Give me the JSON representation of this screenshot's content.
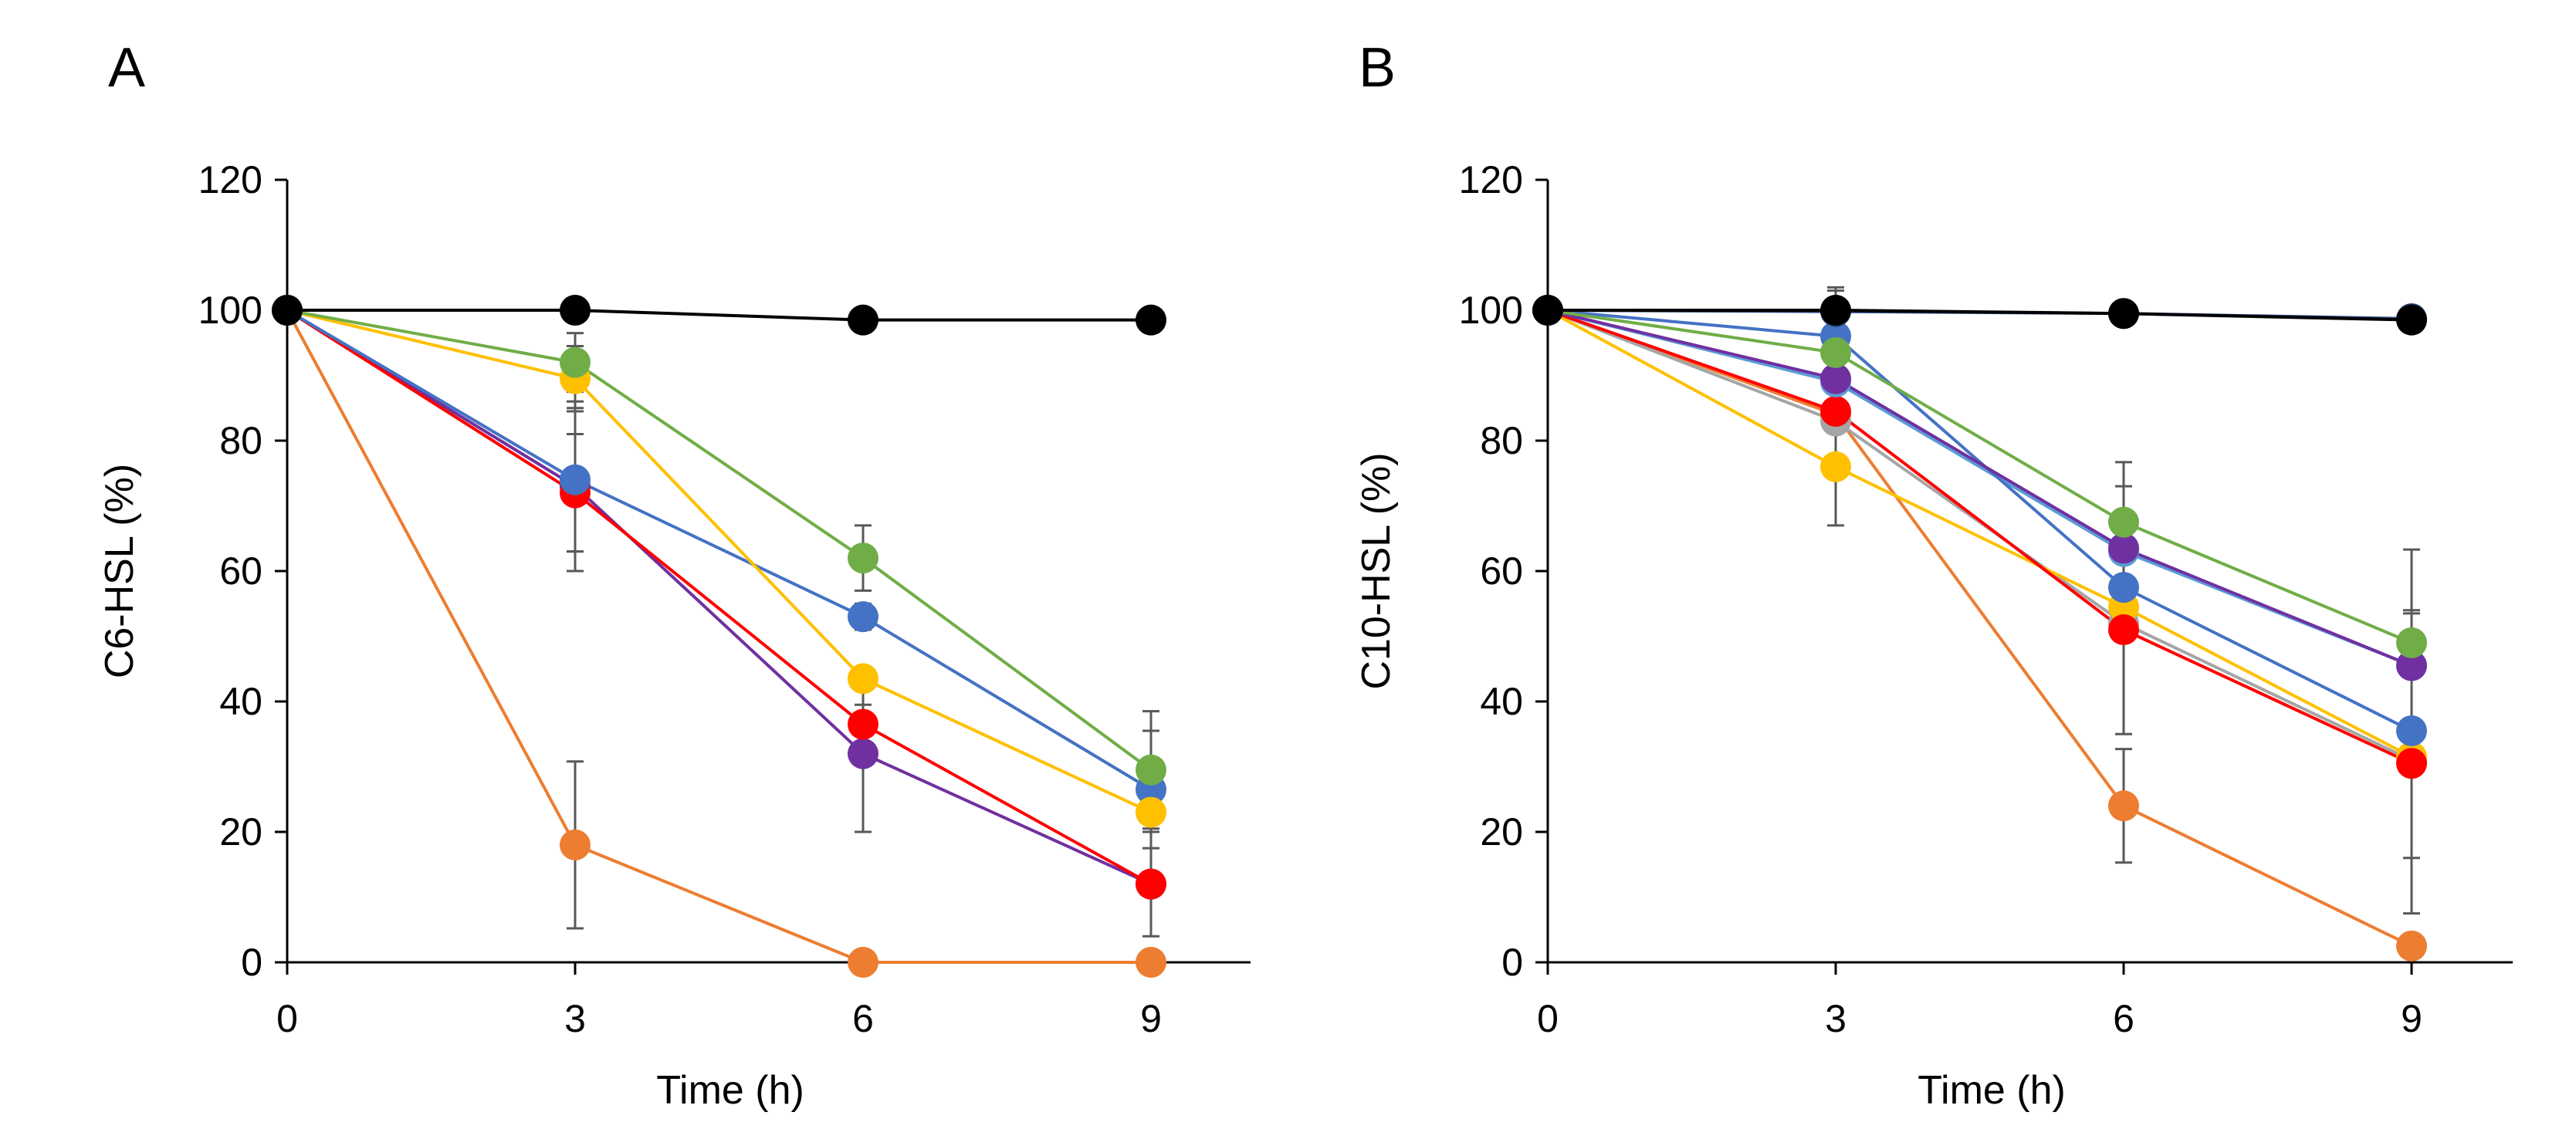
{
  "chart_data": [
    {
      "type": "line",
      "panel_label": "A",
      "xlabel": "Time (h)",
      "ylabel": "C6-HSL (%)",
      "xlim": [
        0,
        10
      ],
      "ylim": [
        0,
        120
      ],
      "x_ticks": [
        0,
        3,
        6,
        9
      ],
      "y_ticks": [
        0,
        20,
        40,
        60,
        80,
        100,
        120
      ],
      "x_tick_labels": [
        "0",
        "3",
        "6",
        "9"
      ],
      "y_tick_labels": [
        "0",
        "20",
        "40",
        "60",
        "80",
        "100",
        "120"
      ],
      "legend": "none",
      "x": [
        0,
        3,
        6,
        9
      ],
      "series": [
        {
          "name": "orange",
          "color": "#ED7D31",
          "values": [
            100,
            18,
            0,
            0
          ],
          "errors": [
            0,
            12.8,
            0,
            0
          ]
        },
        {
          "name": "purple",
          "color": "#7030A0",
          "values": [
            100,
            73,
            32,
            12
          ],
          "errors": [
            0,
            13,
            12,
            8
          ]
        },
        {
          "name": "red",
          "color": "#FF0000",
          "values": [
            100,
            72,
            36.5,
            12
          ],
          "errors": [
            0,
            9,
            3,
            0
          ]
        },
        {
          "name": "blue",
          "color": "#4472C4",
          "values": [
            100,
            74,
            53,
            26.5
          ],
          "errors": [
            0,
            11,
            2,
            9
          ]
        },
        {
          "name": "yellow",
          "color": "#FFC000",
          "values": [
            100,
            89.5,
            43.5,
            23
          ],
          "errors": [
            0,
            5,
            0,
            3
          ]
        },
        {
          "name": "green",
          "color": "#70AD47",
          "values": [
            100,
            92,
            62,
            29.5
          ],
          "errors": [
            0,
            4.5,
            5,
            9
          ]
        },
        {
          "name": "black",
          "color": "#000000",
          "values": [
            100,
            100,
            98.5,
            98.5
          ],
          "errors": [
            0,
            0,
            0,
            0
          ]
        }
      ]
    },
    {
      "type": "line",
      "panel_label": "B",
      "xlabel": "Time (h)",
      "ylabel": "C10-HSL (%)",
      "xlim": [
        0,
        10
      ],
      "ylim": [
        0,
        120
      ],
      "x_ticks": [
        0,
        3,
        6,
        9
      ],
      "y_ticks": [
        0,
        20,
        40,
        60,
        80,
        100,
        120
      ],
      "x_tick_labels": [
        "0",
        "3",
        "6",
        "9"
      ],
      "y_tick_labels": [
        "0",
        "20",
        "40",
        "60",
        "80",
        "100",
        "120"
      ],
      "legend": "none",
      "x": [
        0,
        3,
        6,
        9
      ],
      "series": [
        {
          "name": "orange",
          "color": "#ED7D31",
          "values": [
            100,
            84,
            24,
            2.5
          ],
          "errors": [
            0,
            0,
            8.7,
            0
          ]
        },
        {
          "name": "gray",
          "color": "#A5A5A5",
          "values": [
            100,
            83,
            52,
            31
          ],
          "errors": [
            0,
            0,
            17,
            15
          ]
        },
        {
          "name": "yellow",
          "color": "#FFC000",
          "values": [
            100,
            76,
            54.5,
            31.5
          ],
          "errors": [
            0,
            9,
            0,
            0
          ]
        },
        {
          "name": "red",
          "color": "#FF0000",
          "values": [
            100,
            84.5,
            51,
            30.5
          ],
          "errors": [
            0,
            0,
            0,
            23
          ]
        },
        {
          "name": "light-blue",
          "color": "#5B9BD5",
          "values": [
            100,
            89,
            63,
            45.5
          ],
          "errors": [
            0,
            0,
            10,
            8.5
          ]
        },
        {
          "name": "blue",
          "color": "#4472C4",
          "values": [
            100,
            96,
            57.5,
            35.5
          ],
          "errors": [
            0,
            7,
            0,
            0
          ]
        },
        {
          "name": "purple",
          "color": "#7030A0",
          "values": [
            100,
            89.5,
            63.5,
            45.5
          ],
          "errors": [
            0,
            0,
            0,
            0
          ]
        },
        {
          "name": "green",
          "color": "#70AD47",
          "values": [
            100,
            93.5,
            67.5,
            49
          ],
          "errors": [
            0,
            0,
            9.2,
            14.3
          ]
        },
        {
          "name": "navy",
          "color": "#264478",
          "values": [
            100,
            99.8,
            99.5,
            98.7
          ],
          "errors": [
            0,
            0,
            0,
            0
          ]
        },
        {
          "name": "black",
          "color": "#000000",
          "values": [
            100,
            100,
            99.5,
            98.5
          ],
          "errors": [
            0,
            3.5,
            0,
            0
          ]
        }
      ]
    }
  ]
}
